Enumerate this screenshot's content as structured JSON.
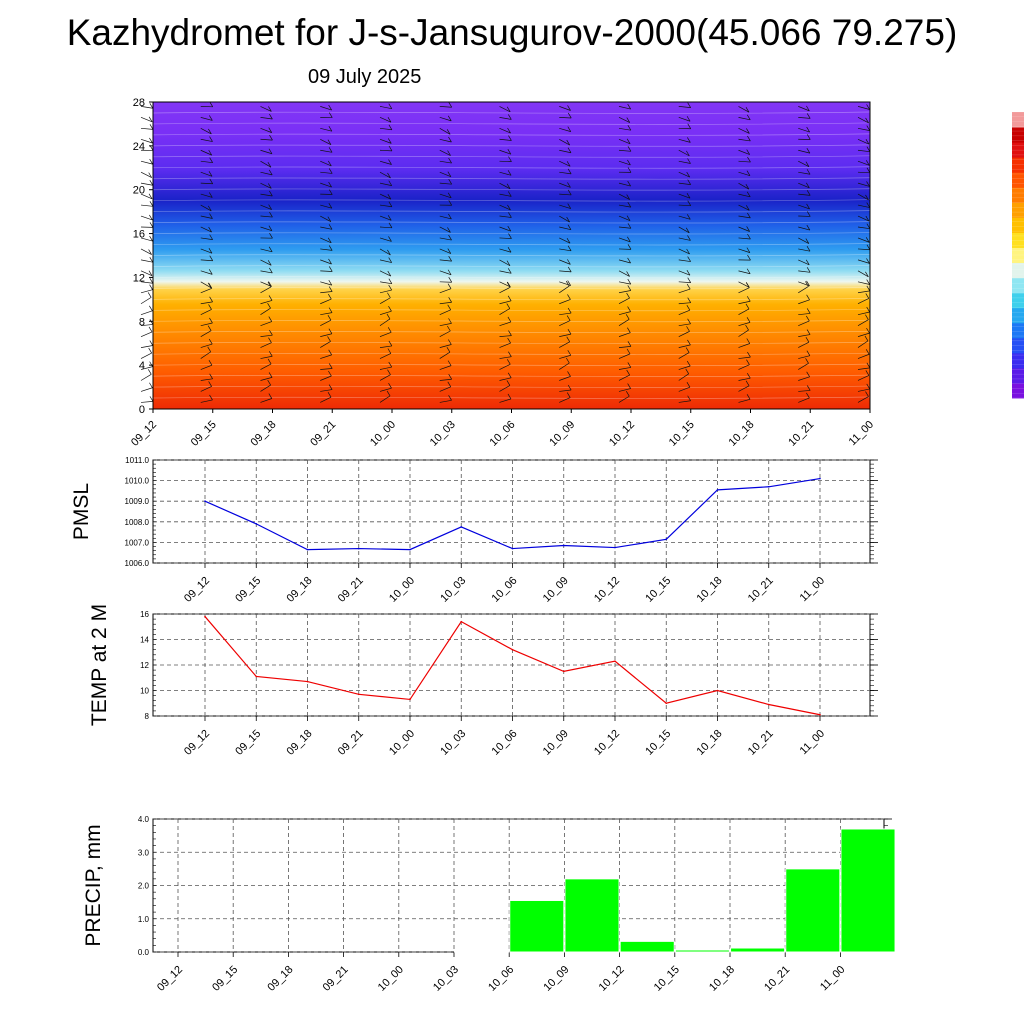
{
  "title": "Kazhydromet for J-s-Jansugurov-2000(45.066 79.275)",
  "subtitle": "09 July 2025",
  "colors": {
    "pmsl_line": "#0000dd",
    "temp_line": "#ee0000",
    "precip_bar": "#00ff00",
    "grid": "#555555"
  },
  "colorbar": [
    "#7a10e0",
    "#5a1be8",
    "#3a2cf0",
    "#2550f5",
    "#1d78f5",
    "#26a8f0",
    "#3fd0ec",
    "#8fe6f2",
    "#e2f4ec",
    "#fff480",
    "#ffe020",
    "#ffc000",
    "#ffa000",
    "#ff7c00",
    "#ff5500",
    "#f53000",
    "#e01010",
    "#c80000",
    "#f29a9a"
  ],
  "chart_data": [
    {
      "type": "heatmap",
      "x_labels": [
        "09_12",
        "09_15",
        "09_18",
        "09_21",
        "10_00",
        "10_03",
        "10_06",
        "10_09",
        "10_12",
        "10_15",
        "10_18",
        "10_21",
        "11_00"
      ],
      "y_ticks": [
        "0",
        "4",
        "8",
        "12",
        "16",
        "20",
        "24",
        "28"
      ],
      "ylim": [
        0,
        28
      ],
      "has_wind_barbs": true
    },
    {
      "type": "line",
      "ylabel": "PMSL",
      "categories": [
        "09_12",
        "09_15",
        "09_18",
        "09_21",
        "10_00",
        "10_03",
        "10_06",
        "10_09",
        "10_12",
        "10_15",
        "10_18",
        "10_21",
        "11_00"
      ],
      "values": [
        1009.0,
        1007.9,
        1006.65,
        1006.7,
        1006.65,
        1007.75,
        1006.7,
        1006.85,
        1006.75,
        1007.15,
        1009.55,
        1009.7,
        1010.1
      ],
      "ylim": [
        1006.0,
        1011.0
      ],
      "y_ticks": [
        "1006.0",
        "1007.0",
        "1008.0",
        "1009.0",
        "1010.0",
        "1011.0"
      ],
      "grid": true
    },
    {
      "type": "line",
      "ylabel": "TEMP at 2 M",
      "categories": [
        "09_12",
        "09_15",
        "09_18",
        "09_21",
        "10_00",
        "10_03",
        "10_06",
        "10_09",
        "10_12",
        "10_15",
        "10_18",
        "10_21",
        "11_00"
      ],
      "values": [
        15.8,
        11.1,
        10.7,
        9.7,
        9.3,
        15.4,
        13.2,
        11.5,
        12.3,
        9.0,
        10.0,
        8.9,
        8.1
      ],
      "ylim": [
        8,
        16
      ],
      "y_ticks": [
        "8",
        "10",
        "12",
        "14",
        "16"
      ],
      "grid": true
    },
    {
      "type": "bar",
      "ylabel": "PRECIP, mm",
      "categories": [
        "09_12",
        "09_15",
        "09_18",
        "09_21",
        "10_00",
        "10_03",
        "10_06",
        "10_09",
        "10_12",
        "10_15",
        "10_18",
        "10_21",
        "11_00"
      ],
      "values": [
        0.0,
        0.0,
        0.0,
        0.0,
        0.0,
        0.02,
        1.55,
        2.2,
        0.32,
        0.06,
        0.12,
        2.5,
        3.7
      ],
      "ylim": [
        0.0,
        4.0
      ],
      "y_ticks": [
        "0.0",
        "1.0",
        "2.0",
        "3.0",
        "4.0"
      ],
      "grid": true
    }
  ]
}
